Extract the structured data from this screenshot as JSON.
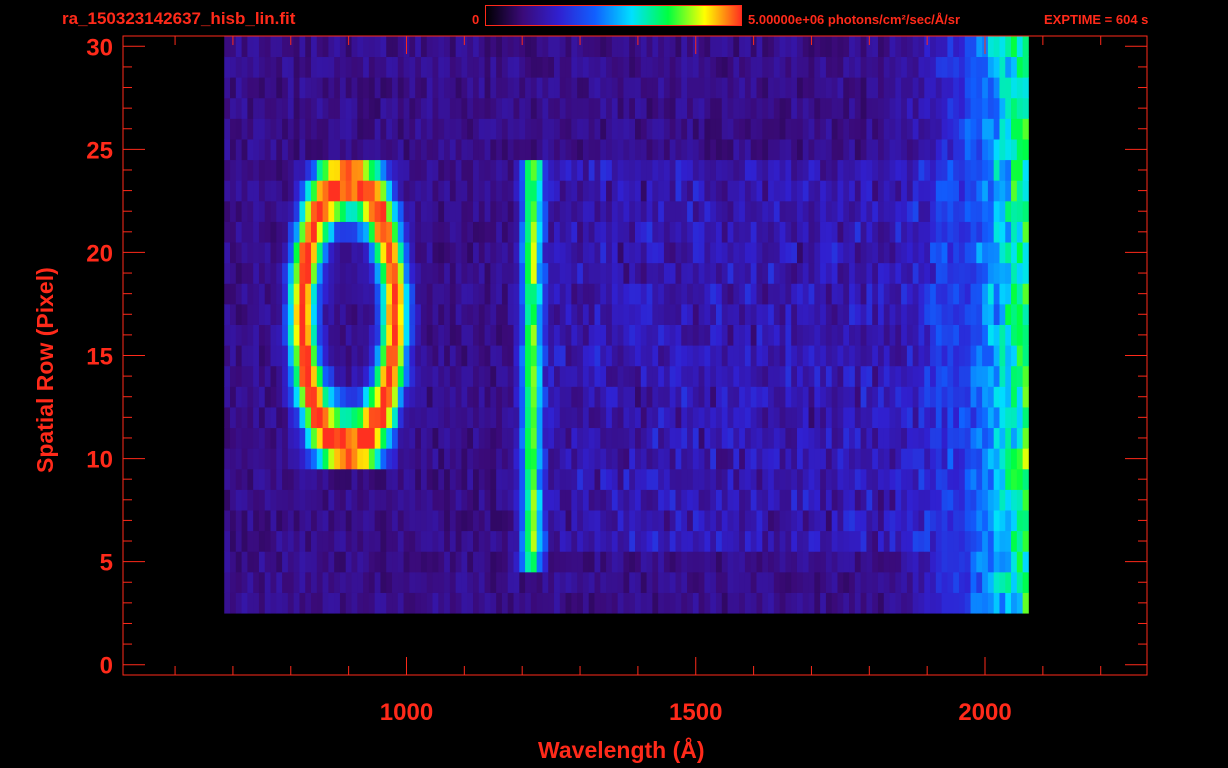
{
  "header": {
    "file_title": "ra_150323142637_hisb_lin.fit",
    "colorbar_min_label": "0",
    "colorbar_max_label": "5.00000e+06 photons/cm²/sec/Å/sr",
    "exptime_label": "EXPTIME = 604 s"
  },
  "colors": {
    "text": "#ff2a1a",
    "background": "#000000",
    "colormap": [
      "#000000",
      "#3a0a78",
      "#3020d0",
      "#1060ff",
      "#00e0ff",
      "#00ff40",
      "#ffff00",
      "#ff3020"
    ]
  },
  "chart_data": {
    "type": "heatmap",
    "xlabel": "Wavelength (Å)",
    "ylabel": "Spatial Row (Pixel)",
    "xlim": [
      510,
      2280
    ],
    "ylim": [
      -0.5,
      30.5
    ],
    "x_ticks": [
      1000,
      1500,
      2000
    ],
    "y_ticks": [
      0,
      5,
      10,
      15,
      20,
      25,
      30
    ],
    "grid": false,
    "colorbar_range": [
      0,
      5000000
    ],
    "colorbar_units": "photons/cm²/sec/Å/sr",
    "data_extent": {
      "wavelength": [
        685,
        2075
      ],
      "rows": [
        3,
        30
      ]
    },
    "features": [
      {
        "wavelength_range": [
          800,
          1000
        ],
        "rows": [
          10,
          24
        ],
        "peak_intensity": 0.85
      },
      {
        "wavelength": 1216,
        "rows": [
          5,
          24
        ],
        "peak_intensity": 0.55
      },
      {
        "wavelength_range": [
          1950,
          2060
        ],
        "rows": [
          3,
          30
        ],
        "peak_intensity": 0.6
      }
    ]
  }
}
